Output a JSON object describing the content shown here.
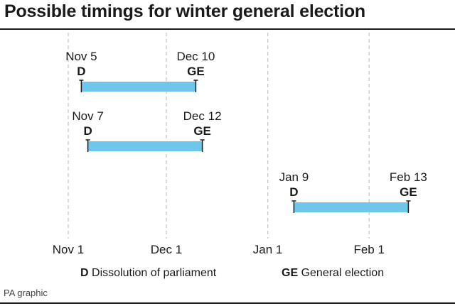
{
  "title": "Possible timings for winter general election",
  "credit": "PA graphic",
  "chart_data": {
    "type": "timeline",
    "axis": {
      "ticks": [
        {
          "label": "Nov 1",
          "date": "2019-11-01"
        },
        {
          "label": "Dec 1",
          "date": "2019-12-01"
        },
        {
          "label": "Jan 1",
          "date": "2020-01-01"
        },
        {
          "label": "Feb 1",
          "date": "2020-02-01"
        }
      ]
    },
    "ranges": [
      {
        "start_label": "Nov 5",
        "start_date": "2019-11-05",
        "start_marker": "D",
        "end_label": "Dec 10",
        "end_date": "2019-12-10",
        "end_marker": "GE"
      },
      {
        "start_label": "Nov 7",
        "start_date": "2019-11-07",
        "start_marker": "D",
        "end_label": "Dec 12",
        "end_date": "2019-12-12",
        "end_marker": "GE"
      },
      {
        "start_label": "Jan 9",
        "start_date": "2020-01-09",
        "start_marker": "D",
        "end_label": "Feb 13",
        "end_date": "2020-02-13",
        "end_marker": "GE"
      }
    ],
    "legend": [
      {
        "key": "D",
        "text": "Dissolution of parliament"
      },
      {
        "key": "GE",
        "text": "General election"
      }
    ],
    "bar_color": "#6ec6ea",
    "grid": true
  }
}
